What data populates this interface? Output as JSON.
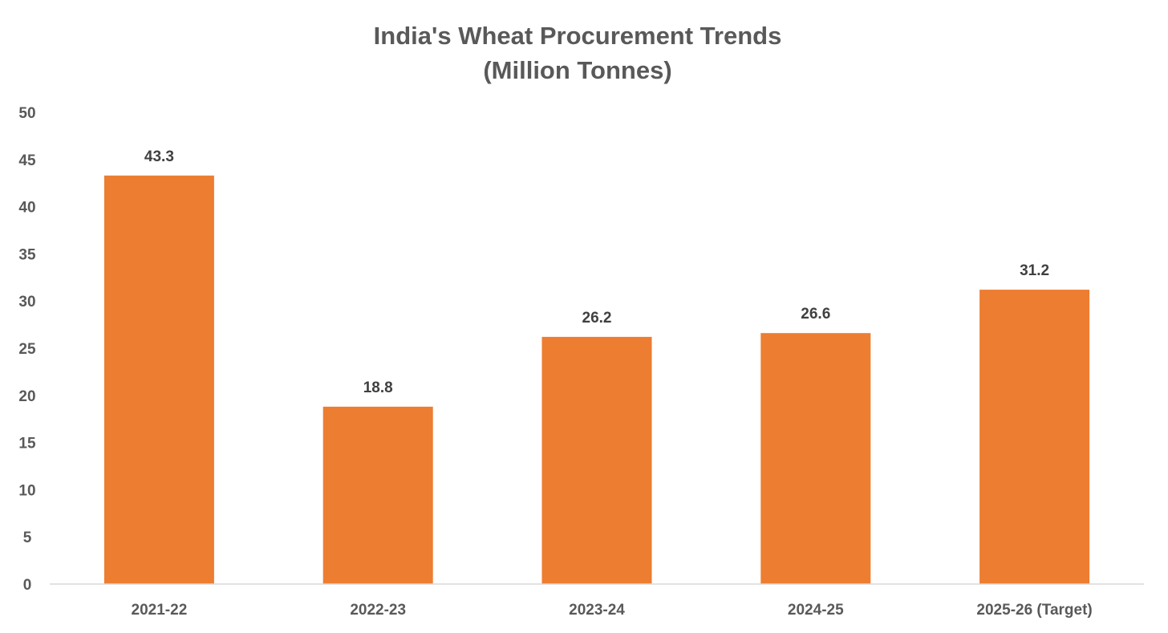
{
  "chart_data": {
    "type": "bar",
    "title": "India's Wheat Procurement Trends",
    "subtitle": "(Million Tonnes)",
    "categories": [
      "2021-22",
      "2022-23",
      "2023-24",
      "2024-25",
      "2025-26 (Target)"
    ],
    "values": [
      43.3,
      18.8,
      26.2,
      26.6,
      31.2
    ],
    "data_labels": [
      "43.3",
      "18.8",
      "26.2",
      "26.6",
      "31.2"
    ],
    "ylim": [
      0,
      50
    ],
    "yticks": [
      0,
      5,
      10,
      15,
      20,
      25,
      30,
      35,
      40,
      45,
      50
    ],
    "grid": false,
    "legend": "none",
    "bar_color": "#ED7D31",
    "axis_color": "#D9D9D9",
    "tick_label_color": "#595959",
    "data_label_color": "#404040"
  }
}
